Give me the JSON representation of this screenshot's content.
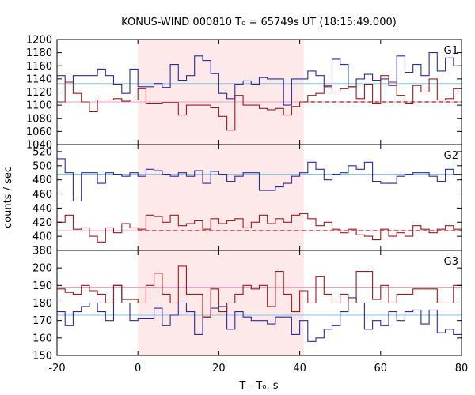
{
  "chart_data": {
    "type": "line",
    "title": "KONUS-WIND 000810 T₀ = 65749s UT (18:15:49.000)",
    "xlabel": "T - T₀, s",
    "ylabel": "counts / sec",
    "xlim": [
      -20,
      80
    ],
    "x_ticks": [
      -20,
      0,
      20,
      40,
      60,
      80
    ],
    "highlight_interval": [
      0,
      41
    ],
    "colors": {
      "highlight": "#fde8ea",
      "blue_series": "#2b2b9c",
      "red_series": "#9c1a1a",
      "blue_reference": "#7ec8ea",
      "pink_reference": "#e6a0d2"
    },
    "bin_edges": [
      -20,
      -18,
      -16,
      -14,
      -12,
      -10,
      -8,
      -6,
      -4,
      -2,
      0,
      2,
      4,
      6,
      8,
      10,
      12,
      14,
      16,
      18,
      20,
      22,
      24,
      26,
      28,
      30,
      32,
      34,
      36,
      38,
      40,
      42,
      44,
      46,
      48,
      50,
      52,
      54,
      56,
      58,
      60,
      62,
      64,
      66,
      68,
      70,
      72,
      74,
      76,
      78,
      80
    ],
    "panels": [
      {
        "label": "G1",
        "ylim": [
          1040,
          1200
        ],
        "y_ticks": [
          1040,
          1060,
          1080,
          1100,
          1120,
          1140,
          1160,
          1180,
          1200
        ],
        "series": [
          {
            "color": "blue",
            "values": [
              1145,
              1135,
              1145,
              1145,
              1145,
              1155,
              1145,
              1132,
              1118,
              1155,
              1128,
              1128,
              1133,
              1127,
              1162,
              1138,
              1145,
              1175,
              1168,
              1148,
              1118,
              1110,
              1132,
              1137,
              1132,
              1142,
              1140,
              1140,
              1100,
              1140,
              1140,
              1152,
              1145,
              1128,
              1170,
              1162,
              1128,
              1140,
              1147,
              1138,
              1140,
              1130,
              1175,
              1150,
              1162,
              1145,
              1180,
              1152,
              1172,
              1160
            ]
          },
          {
            "color": "red",
            "values": [
              1105,
              1135,
              1118,
              1105,
              1090,
              1108,
              1108,
              1110,
              1106,
              1108,
              1125,
              1102,
              1102,
              1104,
              1104,
              1085,
              1100,
              1100,
              1100,
              1096,
              1083,
              1062,
              1115,
              1100,
              1100,
              1095,
              1093,
              1095,
              1085,
              1098,
              1105,
              1115,
              1118,
              1130,
              1120,
              1125,
              1128,
              1110,
              1132,
              1102,
              1145,
              1135,
              1115,
              1102,
              1130,
              1120,
              1140,
              1108,
              1110,
              1125
            ]
          }
        ],
        "reference_lines": [
          {
            "color": "blue",
            "y": 1133
          },
          {
            "color": "pink",
            "y": 1105
          }
        ],
        "background_dashed": {
          "color": "red",
          "y": 1105,
          "x_from": 41
        }
      },
      {
        "label": "G2",
        "ylim": [
          380,
          530
        ],
        "y_ticks": [
          380,
          400,
          420,
          440,
          460,
          480,
          500,
          520
        ],
        "series": [
          {
            "color": "blue",
            "values": [
              510,
              490,
              450,
              490,
              490,
              475,
              490,
              488,
              485,
              490,
              485,
              495,
              493,
              488,
              485,
              490,
              485,
              493,
              475,
              492,
              488,
              478,
              485,
              490,
              490,
              465,
              465,
              470,
              475,
              485,
              490,
              505,
              495,
              480,
              488,
              490,
              500,
              495,
              505,
              478,
              475,
              475,
              485,
              488,
              490,
              490,
              485,
              478,
              495,
              488
            ]
          },
          {
            "color": "red",
            "values": [
              420,
              430,
              410,
              412,
              400,
              392,
              412,
              405,
              418,
              412,
              410,
              430,
              428,
              420,
              430,
              415,
              418,
              422,
              410,
              425,
              418,
              422,
              425,
              412,
              420,
              430,
              418,
              425,
              420,
              430,
              432,
              425,
              415,
              420,
              410,
              405,
              410,
              402,
              400,
              395,
              410,
              400,
              405,
              400,
              415,
              410,
              405,
              410,
              415,
              410
            ]
          }
        ],
        "reference_lines": [
          {
            "color": "blue",
            "y": 488
          },
          {
            "color": "pink",
            "y": 408
          }
        ],
        "background_dashed": {
          "color": "red",
          "y": 408,
          "x_from": 0
        }
      },
      {
        "label": "G3",
        "ylim": [
          150,
          210
        ],
        "y_ticks": [
          150,
          160,
          170,
          180,
          190,
          200
        ],
        "series": [
          {
            "color": "blue",
            "values": [
              175,
              167,
              175,
              178,
              180,
              175,
              170,
              190,
              180,
              170,
              171,
              171,
              177,
              167,
              173,
              180,
              175,
              162,
              172,
              177,
              178,
              165,
              175,
              172,
              170,
              170,
              168,
              172,
              172,
              162,
              170,
              158,
              160,
              165,
              167,
              175,
              183,
              180,
              165,
              170,
              167,
              175,
              170,
              175,
              176,
              168,
              176,
              163,
              165,
              162
            ]
          },
          {
            "color": "red",
            "values": [
              188,
              186,
              185,
              190,
              187,
              185,
              180,
              190,
              182,
              182,
              180,
              190,
              197,
              185,
              180,
              201,
              185,
              185,
              172,
              188,
              175,
              180,
              185,
              190,
              188,
              190,
              178,
              198,
              185,
              175,
              187,
              180,
              195,
              185,
              180,
              185,
              180,
              198,
              198,
              182,
              190,
              180,
              185,
              185,
              188,
              188,
              188,
              180,
              180,
              190
            ]
          }
        ],
        "reference_lines": [
          {
            "color": "blue",
            "y": 173
          },
          {
            "color": "pink",
            "y": 189
          }
        ]
      }
    ]
  }
}
